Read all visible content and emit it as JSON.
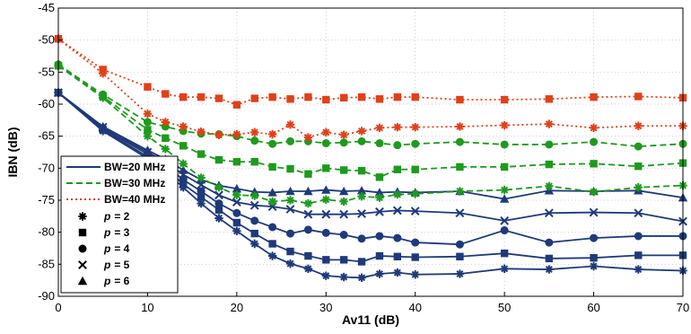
{
  "chart_data": {
    "type": "line",
    "xlabel": "Av11 (dB)",
    "ylabel": "IBN (dB)",
    "xlim": [
      0,
      70
    ],
    "ylim": [
      -90,
      -45
    ],
    "xticks": [
      0,
      10,
      20,
      30,
      40,
      50,
      60,
      70
    ],
    "yticks": [
      -90,
      -85,
      -80,
      -75,
      -70,
      -65,
      -60,
      -55,
      -50,
      -45
    ],
    "grid": true,
    "legend_position": "bottom-left",
    "x": [
      0,
      5,
      10,
      12,
      14,
      16,
      18,
      20,
      22,
      24,
      26,
      28,
      30,
      32,
      34,
      36,
      38,
      40,
      45,
      50,
      55,
      60,
      65,
      70
    ],
    "series": [
      {
        "bw": "BW=20 MHz",
        "p": 2,
        "color": "#1f3a7a",
        "values": [
          -58.2,
          -64.2,
          -68.5,
          -70.5,
          -73.0,
          -75.5,
          -77.8,
          -79.8,
          -81.8,
          -83.7,
          -84.9,
          -85.7,
          -86.8,
          -87.0,
          -87.1,
          -86.5,
          -86.3,
          -86.6,
          -86.5,
          -85.7,
          -85.8,
          -85.3,
          -85.8,
          -86.0
        ]
      },
      {
        "bw": "BW=20 MHz",
        "p": 3,
        "color": "#1f3a7a",
        "values": [
          -58.2,
          -64.0,
          -68.2,
          -70.0,
          -72.5,
          -74.5,
          -76.5,
          -78.5,
          -80.2,
          -81.8,
          -83.0,
          -83.7,
          -84.3,
          -84.3,
          -84.6,
          -83.7,
          -83.8,
          -83.9,
          -83.8,
          -83.3,
          -84.1,
          -84.0,
          -83.6,
          -83.6
        ]
      },
      {
        "bw": "BW=20 MHz",
        "p": 4,
        "color": "#1f3a7a",
        "values": [
          -58.2,
          -63.8,
          -67.8,
          -69.5,
          -71.8,
          -73.6,
          -75.5,
          -77.0,
          -78.2,
          -79.2,
          -80.2,
          -79.6,
          -80.1,
          -80.4,
          -81.0,
          -80.6,
          -80.9,
          -81.6,
          -81.9,
          -79.7,
          -81.6,
          -80.9,
          -80.6,
          -80.6
        ]
      },
      {
        "bw": "BW=20 MHz",
        "p": 5,
        "color": "#1f3a7a",
        "values": [
          -58.2,
          -63.6,
          -67.5,
          -69.0,
          -71.0,
          -72.6,
          -74.2,
          -75.3,
          -75.8,
          -76.0,
          -76.4,
          -77.2,
          -77.2,
          -77.2,
          -77.1,
          -76.8,
          -76.6,
          -76.7,
          -77.0,
          -78.2,
          -77.0,
          -76.9,
          -77.0,
          -78.3
        ]
      },
      {
        "bw": "BW=20 MHz",
        "p": 6,
        "color": "#1f3a7a",
        "values": [
          -58.2,
          -63.5,
          -67.2,
          -68.6,
          -70.3,
          -71.8,
          -72.7,
          -73.2,
          -73.7,
          -73.8,
          -73.6,
          -73.6,
          -73.4,
          -73.6,
          -73.5,
          -73.8,
          -73.7,
          -73.8,
          -73.6,
          -74.8,
          -73.5,
          -73.6,
          -73.5,
          -74.6
        ]
      },
      {
        "bw": "BW=30 MHz",
        "p": 2,
        "color": "#1e9a1e",
        "values": [
          -54.0,
          -59.0,
          -65.0,
          -67.0,
          -69.3,
          -71.5,
          -73.0,
          -74.2,
          -74.3,
          -75.2,
          -75.0,
          -75.5,
          -74.9,
          -75.2,
          -74.4,
          -74.6,
          -74.1,
          -74.0,
          -73.6,
          -73.4,
          -72.8,
          -73.7,
          -73.0,
          -72.7
        ]
      },
      {
        "bw": "BW=30 MHz",
        "p": 3,
        "color": "#1e9a1e",
        "values": [
          -54.0,
          -58.8,
          -64.0,
          -65.3,
          -66.5,
          -67.8,
          -68.7,
          -69.0,
          -69.0,
          -69.8,
          -70.1,
          -70.9,
          -70.0,
          -70.3,
          -70.4,
          -71.4,
          -70.2,
          -70.2,
          -69.8,
          -69.8,
          -69.4,
          -69.3,
          -69.7,
          -69.2
        ]
      },
      {
        "bw": "BW=30 MHz",
        "p": 4,
        "color": "#1e9a1e",
        "values": [
          -53.8,
          -58.5,
          -62.8,
          -63.5,
          -64.2,
          -64.6,
          -64.7,
          -65.0,
          -65.7,
          -66.2,
          -65.8,
          -65.8,
          -66.1,
          -66.0,
          -65.8,
          -66.1,
          -66.4,
          -66.2,
          -65.9,
          -66.3,
          -66.3,
          -65.9,
          -66.6,
          -66.2
        ]
      },
      {
        "bw": "BW=40 MHz",
        "p": 2,
        "color": "#e0401a",
        "values": [
          -49.8,
          -55.2,
          -61.5,
          -62.8,
          -63.5,
          -64.3,
          -64.8,
          -64.7,
          -64.4,
          -64.7,
          -63.2,
          -65.2,
          -64.4,
          -64.8,
          -64.2,
          -63.7,
          -63.6,
          -63.6,
          -63.5,
          -63.3,
          -63.1,
          -63.7,
          -63.4,
          -63.4
        ]
      },
      {
        "bw": "BW=40 MHz",
        "p": 3,
        "color": "#e0401a",
        "values": [
          -49.8,
          -54.6,
          -57.3,
          -58.4,
          -58.9,
          -58.9,
          -59.1,
          -60.1,
          -59.1,
          -58.9,
          -59.2,
          -58.9,
          -59.3,
          -59.0,
          -58.9,
          -59.2,
          -58.9,
          -58.9,
          -59.3,
          -59.3,
          -59.2,
          -58.9,
          -58.8,
          -59.0
        ]
      }
    ],
    "legend": {
      "lines": [
        {
          "label": "BW=20 MHz",
          "color": "#1f3a7a",
          "dash": "solid"
        },
        {
          "label": "BW=30 MHz",
          "color": "#1e9a1e",
          "dash": "dashed"
        },
        {
          "label": "BW=40 MHz",
          "color": "#e0401a",
          "dash": "dotted"
        }
      ],
      "markers": [
        {
          "symbol": "asterisk",
          "label": "p = 2",
          "var": "p",
          "eq": "= 2"
        },
        {
          "symbol": "square",
          "label": "p = 3",
          "var": "p",
          "eq": "= 3"
        },
        {
          "symbol": "circle",
          "label": "p = 4",
          "var": "p",
          "eq": "= 4"
        },
        {
          "symbol": "cross",
          "label": "p = 5",
          "var": "p",
          "eq": "= 5"
        },
        {
          "symbol": "triangle",
          "label": "p = 6",
          "var": "p",
          "eq": "= 6"
        }
      ]
    }
  }
}
